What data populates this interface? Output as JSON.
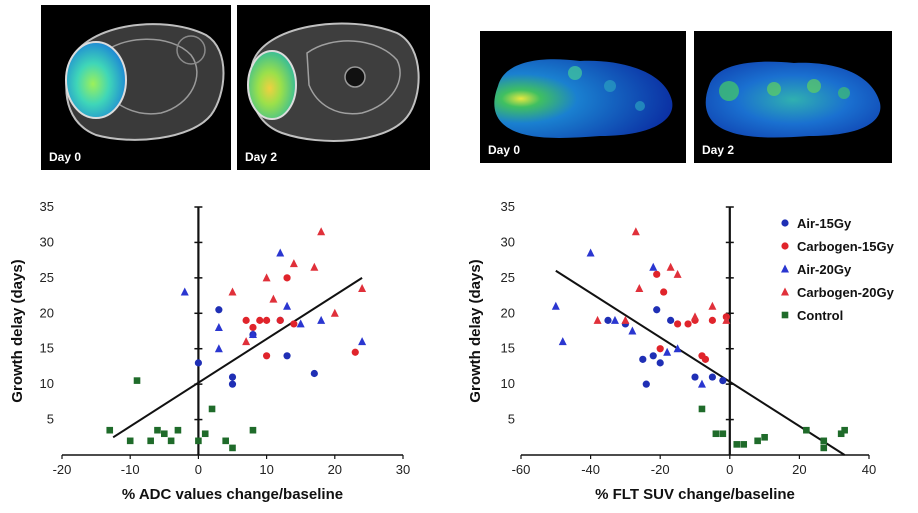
{
  "images": {
    "mri": [
      {
        "label": "Day 0"
      },
      {
        "label": "Day 2"
      }
    ],
    "pet": [
      {
        "label": "Day 0"
      },
      {
        "label": "Day 2"
      }
    ]
  },
  "colors": {
    "air15": "#1f2fb5",
    "carbogen15": "#e0242b",
    "air20": "#2a36d0",
    "carbogen20": "#e0303a",
    "control": "#1f6b2a"
  },
  "legend": [
    "Air-15Gy",
    "Carbogen-15Gy",
    "Air-20Gy",
    "Carbogen-20Gy",
    "Control"
  ],
  "chart_data": [
    {
      "type": "scatter",
      "title": "",
      "xlabel": "% ADC values change/baseline",
      "ylabel": "Growth delay (days)",
      "xlim": [
        -20,
        30
      ],
      "ylim": [
        0,
        35
      ],
      "xticks": [
        -20,
        -10,
        0,
        10,
        20,
        30
      ],
      "yticks": [
        5,
        10,
        15,
        20,
        25,
        30,
        35
      ],
      "trendline": {
        "x": [
          -12.5,
          24
        ],
        "y": [
          2.5,
          25
        ]
      },
      "series": [
        {
          "name": "Air-15Gy",
          "marker": "circle",
          "x": [
            0,
            3,
            5,
            5,
            12,
            13,
            17,
            8
          ],
          "y": [
            13,
            20.5,
            11,
            10,
            19,
            14,
            11.5,
            17
          ]
        },
        {
          "name": "Carbogen-15Gy",
          "marker": "circle",
          "x": [
            7,
            8,
            9,
            10,
            12,
            13,
            14,
            10,
            23
          ],
          "y": [
            19,
            18,
            19,
            14,
            19,
            25,
            18.5,
            19,
            14.5
          ]
        },
        {
          "name": "Air-20Gy",
          "marker": "triangle",
          "x": [
            -2,
            3,
            3,
            8,
            12,
            13,
            15,
            18,
            24
          ],
          "y": [
            23,
            18,
            15,
            17,
            28.5,
            21,
            18.5,
            19,
            16
          ]
        },
        {
          "name": "Carbogen-20Gy",
          "marker": "triangle",
          "x": [
            5,
            7,
            10,
            11,
            14,
            17,
            18,
            20,
            24
          ],
          "y": [
            23,
            16,
            25,
            22,
            27,
            26.5,
            31.5,
            20,
            23.5
          ]
        },
        {
          "name": "Control",
          "marker": "square",
          "x": [
            -13,
            -10,
            -9,
            -7,
            -6,
            -5,
            -4,
            -3,
            0,
            1,
            2,
            4,
            5,
            8
          ],
          "y": [
            3.5,
            2,
            10.5,
            2,
            3.5,
            3,
            2,
            3.5,
            2,
            3,
            6.5,
            2,
            1,
            3.5
          ]
        }
      ]
    },
    {
      "type": "scatter",
      "title": "",
      "xlabel": "% FLT SUV change/baseline",
      "ylabel": "Growth delay (days)",
      "xlim": [
        -60,
        40
      ],
      "ylim": [
        0,
        35
      ],
      "xticks": [
        -60,
        -40,
        -20,
        0,
        20,
        40
      ],
      "yticks": [
        5,
        10,
        15,
        20,
        25,
        30,
        35
      ],
      "trendline": {
        "x": [
          -50,
          33
        ],
        "y": [
          26,
          0
        ]
      },
      "series": [
        {
          "name": "Air-15Gy",
          "marker": "circle",
          "x": [
            -35,
            -30,
            -25,
            -24,
            -22,
            -21,
            -20,
            -17,
            -10,
            -5,
            -2
          ],
          "y": [
            19,
            18.5,
            13.5,
            10,
            14,
            20.5,
            13,
            19,
            11,
            11,
            10.5
          ]
        },
        {
          "name": "Carbogen-15Gy",
          "marker": "circle",
          "x": [
            -21,
            -20,
            -19,
            -15,
            -12,
            -10,
            -8,
            -7,
            -5,
            -1
          ],
          "y": [
            25.5,
            15,
            23,
            18.5,
            18.5,
            19,
            14,
            13.5,
            19,
            19.5
          ]
        },
        {
          "name": "Air-20Gy",
          "marker": "triangle",
          "x": [
            -50,
            -48,
            -40,
            -33,
            -28,
            -22,
            -18,
            -15,
            -8
          ],
          "y": [
            21,
            16,
            28.5,
            19,
            17.5,
            26.5,
            14.5,
            15,
            10
          ]
        },
        {
          "name": "Carbogen-20Gy",
          "marker": "triangle",
          "x": [
            -38,
            -30,
            -27,
            -26,
            -17,
            -15,
            -10,
            -5,
            -1
          ],
          "y": [
            19,
            19,
            31.5,
            23.5,
            26.5,
            25.5,
            19.5,
            21,
            19
          ]
        },
        {
          "name": "Control",
          "marker": "square",
          "x": [
            -8,
            -4,
            -2,
            2,
            4,
            8,
            10,
            22,
            27,
            27,
            32,
            33
          ],
          "y": [
            6.5,
            3,
            3,
            1.5,
            1.5,
            2,
            2.5,
            3.5,
            1,
            2,
            3,
            3.5
          ]
        }
      ]
    }
  ]
}
